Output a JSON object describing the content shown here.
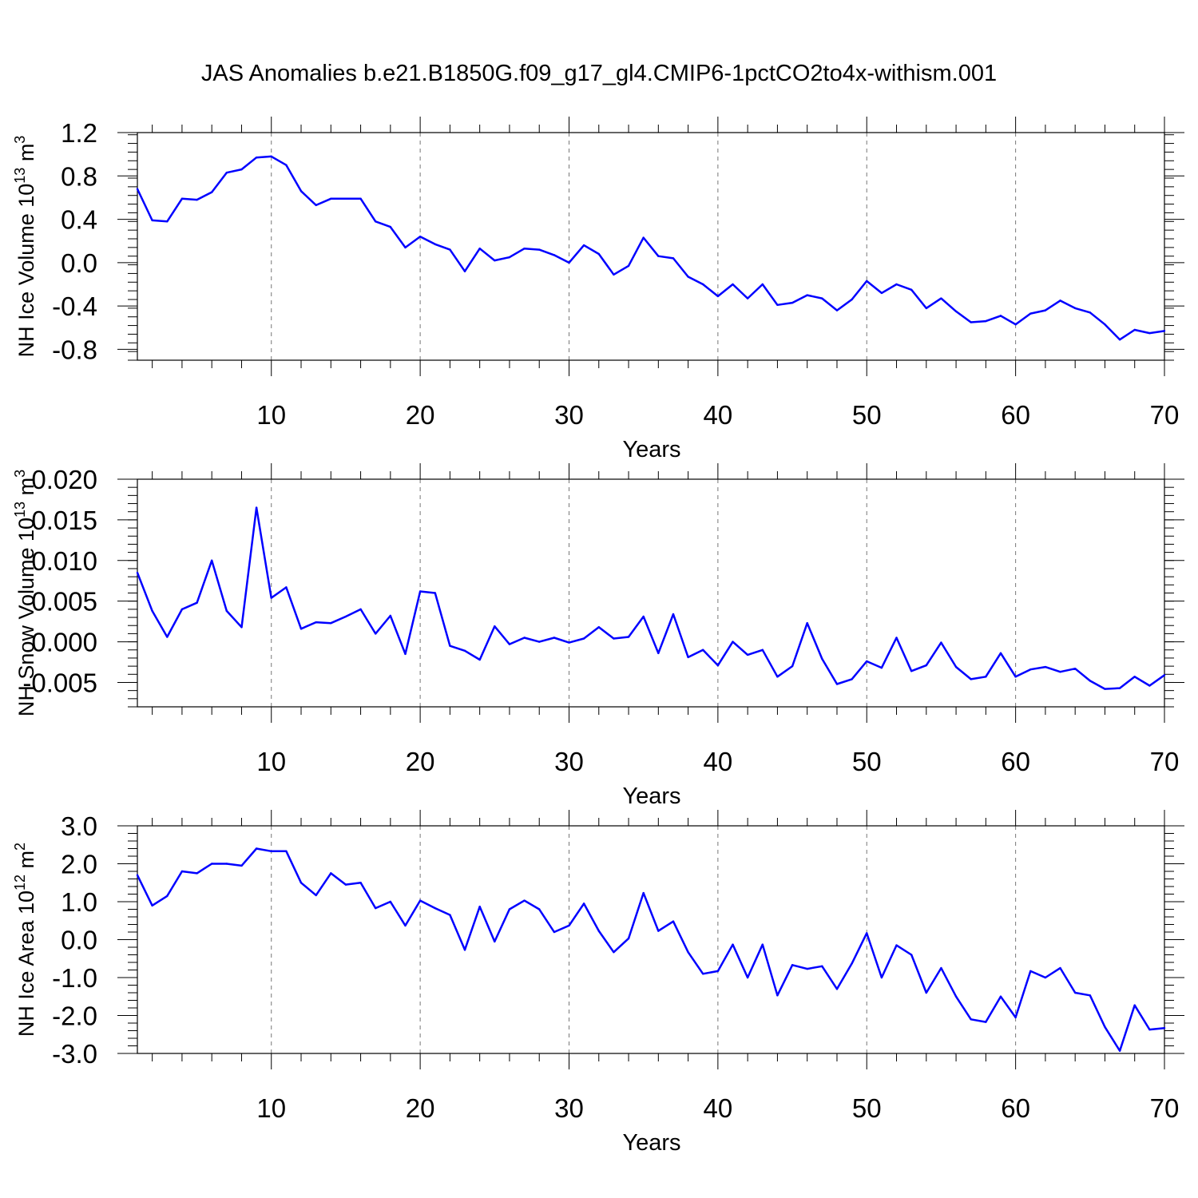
{
  "title": "JAS Anomalies b.e21.B1850G.f09_g17_gl4.CMIP6-1pctCO2to4x-withism.001",
  "colors": {
    "series": "#0000ff",
    "axis": "#000000",
    "grid": "#777777"
  },
  "chart_data": [
    {
      "type": "line",
      "xlabel": "Years",
      "ylabel": {
        "text": "NH Ice Volume 10",
        "sup": "13",
        "unit": " m",
        "unit_sup": "3"
      },
      "xlim": [
        1,
        70
      ],
      "ylim": [
        -0.9,
        1.2
      ],
      "xticks": [
        10,
        20,
        30,
        40,
        50,
        60,
        70
      ],
      "xtick_labels": [
        "10",
        "20",
        "30",
        "40",
        "50",
        "60",
        "70"
      ],
      "yticks": [
        -0.8,
        -0.4,
        0.0,
        0.4,
        0.8,
        1.2
      ],
      "ytick_labels": [
        "-0.8",
        "-0.4",
        "0.0",
        "0.4",
        "0.8",
        "1.2"
      ],
      "grid": "dashed vertical at major x ticks",
      "x": [
        1,
        2,
        3,
        4,
        5,
        6,
        7,
        8,
        9,
        10,
        11,
        12,
        13,
        14,
        15,
        16,
        17,
        18,
        19,
        20,
        21,
        22,
        23,
        24,
        25,
        26,
        27,
        28,
        29,
        30,
        31,
        32,
        33,
        34,
        35,
        36,
        37,
        38,
        39,
        40,
        41,
        42,
        43,
        44,
        45,
        46,
        47,
        48,
        49,
        50,
        51,
        52,
        53,
        54,
        55,
        56,
        57,
        58,
        59,
        60,
        61,
        62,
        63,
        64,
        65,
        66,
        67,
        68,
        69,
        70
      ],
      "y": [
        0.68,
        0.39,
        0.38,
        0.59,
        0.58,
        0.65,
        0.83,
        0.86,
        0.97,
        0.98,
        0.9,
        0.66,
        0.53,
        0.59,
        0.59,
        0.59,
        0.38,
        0.33,
        0.14,
        0.24,
        0.17,
        0.12,
        -0.08,
        0.13,
        0.02,
        0.05,
        0.13,
        0.12,
        0.07,
        0.0,
        0.16,
        0.08,
        -0.11,
        -0.03,
        0.23,
        0.06,
        0.04,
        -0.13,
        -0.2,
        -0.31,
        -0.2,
        -0.33,
        -0.2,
        -0.39,
        -0.37,
        -0.3,
        -0.33,
        -0.44,
        -0.34,
        -0.17,
        -0.28,
        -0.2,
        -0.25,
        -0.42,
        -0.33,
        -0.45,
        -0.55,
        -0.54,
        -0.49,
        -0.57,
        -0.47,
        -0.44,
        -0.35,
        -0.42,
        -0.46,
        -0.57,
        -0.71,
        -0.62,
        -0.65,
        -0.63
      ]
    },
    {
      "type": "line",
      "xlabel": "Years",
      "ylabel": {
        "text": "NH Snow Volume 10",
        "sup": "13",
        "unit": " m",
        "unit_sup": "3"
      },
      "xlim": [
        1,
        70
      ],
      "ylim": [
        -0.008,
        0.02
      ],
      "xticks": [
        10,
        20,
        30,
        40,
        50,
        60,
        70
      ],
      "xtick_labels": [
        "10",
        "20",
        "30",
        "40",
        "50",
        "60",
        "70"
      ],
      "yticks": [
        -0.005,
        0.0,
        0.005,
        0.01,
        0.015,
        0.02
      ],
      "ytick_labels": [
        "-0.005",
        "0.000",
        "0.005",
        "0.010",
        "0.015",
        "0.020"
      ],
      "grid": "dashed vertical at major x ticks",
      "x": [
        1,
        2,
        3,
        4,
        5,
        6,
        7,
        8,
        9,
        10,
        11,
        12,
        13,
        14,
        15,
        16,
        17,
        18,
        19,
        20,
        21,
        22,
        23,
        24,
        25,
        26,
        27,
        28,
        29,
        30,
        31,
        32,
        33,
        34,
        35,
        36,
        37,
        38,
        39,
        40,
        41,
        42,
        43,
        44,
        45,
        46,
        47,
        48,
        49,
        50,
        51,
        52,
        53,
        54,
        55,
        56,
        57,
        58,
        59,
        60,
        61,
        62,
        63,
        64,
        65,
        66,
        67,
        68,
        69,
        70
      ],
      "y": [
        0.0085,
        0.0038,
        0.0006,
        0.004,
        0.0048,
        0.01,
        0.0038,
        0.0018,
        0.0165,
        0.0054,
        0.0067,
        0.0016,
        0.0024,
        0.0023,
        0.0031,
        0.004,
        0.001,
        0.0032,
        -0.0015,
        0.0062,
        0.006,
        -0.0005,
        -0.0011,
        -0.0022,
        0.0019,
        -0.0003,
        0.0005,
        0.0,
        0.0005,
        -0.0001,
        0.0004,
        0.0018,
        0.0004,
        0.0006,
        0.0031,
        -0.0014,
        0.0034,
        -0.0019,
        -0.001,
        -0.0029,
        0.0,
        -0.0016,
        -0.001,
        -0.0043,
        -0.003,
        0.0023,
        -0.0021,
        -0.0052,
        -0.0046,
        -0.0024,
        -0.0032,
        0.0005,
        -0.0036,
        -0.0029,
        -0.0001,
        -0.0031,
        -0.0046,
        -0.0043,
        -0.0014,
        -0.0043,
        -0.0034,
        -0.0031,
        -0.0037,
        -0.0033,
        -0.0048,
        -0.0058,
        -0.0057,
        -0.0043,
        -0.0054,
        -0.0041
      ]
    },
    {
      "type": "line",
      "xlabel": "Years",
      "ylabel": {
        "text": "NH Ice Area 10",
        "sup": "12",
        "unit": " m",
        "unit_sup": "2"
      },
      "xlim": [
        1,
        70
      ],
      "ylim": [
        -3.0,
        3.0
      ],
      "xticks": [
        10,
        20,
        30,
        40,
        50,
        60,
        70
      ],
      "xtick_labels": [
        "10",
        "20",
        "30",
        "40",
        "50",
        "60",
        "70"
      ],
      "yticks": [
        -3.0,
        -2.0,
        -1.0,
        0.0,
        1.0,
        2.0,
        3.0
      ],
      "ytick_labels": [
        "-3.0",
        "-2.0",
        "-1.0",
        "0.0",
        "1.0",
        "2.0",
        "3.0"
      ],
      "grid": "dashed vertical at major x ticks",
      "x": [
        1,
        2,
        3,
        4,
        5,
        6,
        7,
        8,
        9,
        10,
        11,
        12,
        13,
        14,
        15,
        16,
        17,
        18,
        19,
        20,
        21,
        22,
        23,
        24,
        25,
        26,
        27,
        28,
        29,
        30,
        31,
        32,
        33,
        34,
        35,
        36,
        37,
        38,
        39,
        40,
        41,
        42,
        43,
        44,
        45,
        46,
        47,
        48,
        49,
        50,
        51,
        52,
        53,
        54,
        55,
        56,
        57,
        58,
        59,
        60,
        61,
        62,
        63,
        64,
        65,
        66,
        67,
        68,
        69,
        70
      ],
      "y": [
        1.7,
        0.9,
        1.15,
        1.8,
        1.75,
        2.0,
        2.0,
        1.95,
        2.4,
        2.33,
        2.33,
        1.5,
        1.17,
        1.75,
        1.45,
        1.5,
        0.83,
        1.0,
        0.37,
        1.03,
        0.83,
        0.65,
        -0.27,
        0.87,
        -0.05,
        0.8,
        1.03,
        0.8,
        0.2,
        0.37,
        0.95,
        0.23,
        -0.33,
        0.03,
        1.23,
        0.23,
        0.48,
        -0.33,
        -0.9,
        -0.83,
        -0.13,
        -1.0,
        -0.13,
        -1.47,
        -0.67,
        -0.77,
        -0.7,
        -1.3,
        -0.63,
        0.17,
        -1.0,
        -0.15,
        -0.4,
        -1.4,
        -0.75,
        -1.5,
        -2.1,
        -2.17,
        -1.5,
        -2.05,
        -0.83,
        -1.0,
        -0.75,
        -1.4,
        -1.47,
        -2.3,
        -2.93,
        -1.73,
        -2.37,
        -2.33
      ]
    }
  ]
}
